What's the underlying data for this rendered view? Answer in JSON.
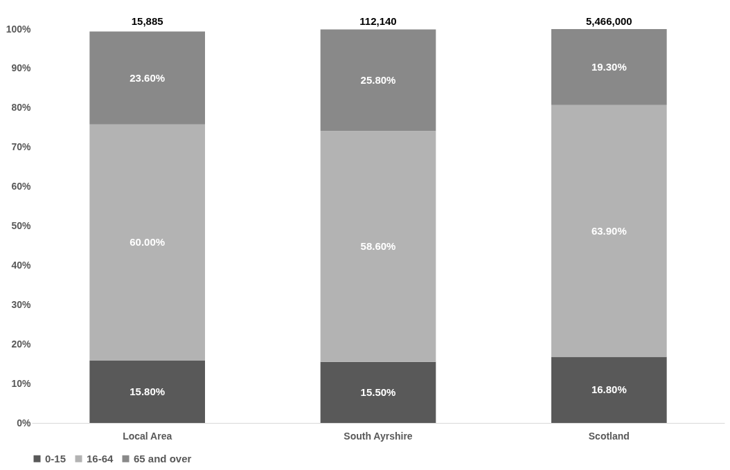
{
  "chart_data": {
    "type": "bar",
    "stacked": true,
    "categories": [
      "Local Area",
      "South Ayrshire",
      "Scotland"
    ],
    "series": [
      {
        "name": "0-15",
        "color": "#595959",
        "values": [
          15.8,
          15.5,
          16.8
        ],
        "value_labels": [
          "15.80%",
          "15.50%",
          "16.80%"
        ]
      },
      {
        "name": "16-64",
        "color": "#b3b3b3",
        "values": [
          60.0,
          58.6,
          63.9
        ],
        "value_labels": [
          "60.00%",
          "58.60%",
          "63.90%"
        ]
      },
      {
        "name": "65 and over",
        "color": "#898989",
        "values": [
          23.6,
          25.8,
          19.3
        ],
        "value_labels": [
          "23.60%",
          "25.80%",
          "19.30%"
        ]
      }
    ],
    "annotations": [
      "15,885",
      "112,140",
      "5,466,000"
    ],
    "ylim": [
      0,
      100
    ],
    "yticks": [
      {
        "value": 0,
        "label": "0%"
      },
      {
        "value": 10,
        "label": "10%"
      },
      {
        "value": 20,
        "label": "20%"
      },
      {
        "value": 30,
        "label": "30%"
      },
      {
        "value": 40,
        "label": "40%"
      },
      {
        "value": 50,
        "label": "50%"
      },
      {
        "value": 60,
        "label": "60%"
      },
      {
        "value": 70,
        "label": "70%"
      },
      {
        "value": 80,
        "label": "80%"
      },
      {
        "value": 90,
        "label": "90%"
      },
      {
        "value": 100,
        "label": "100%"
      }
    ],
    "grid": false,
    "legend": "bottom"
  }
}
